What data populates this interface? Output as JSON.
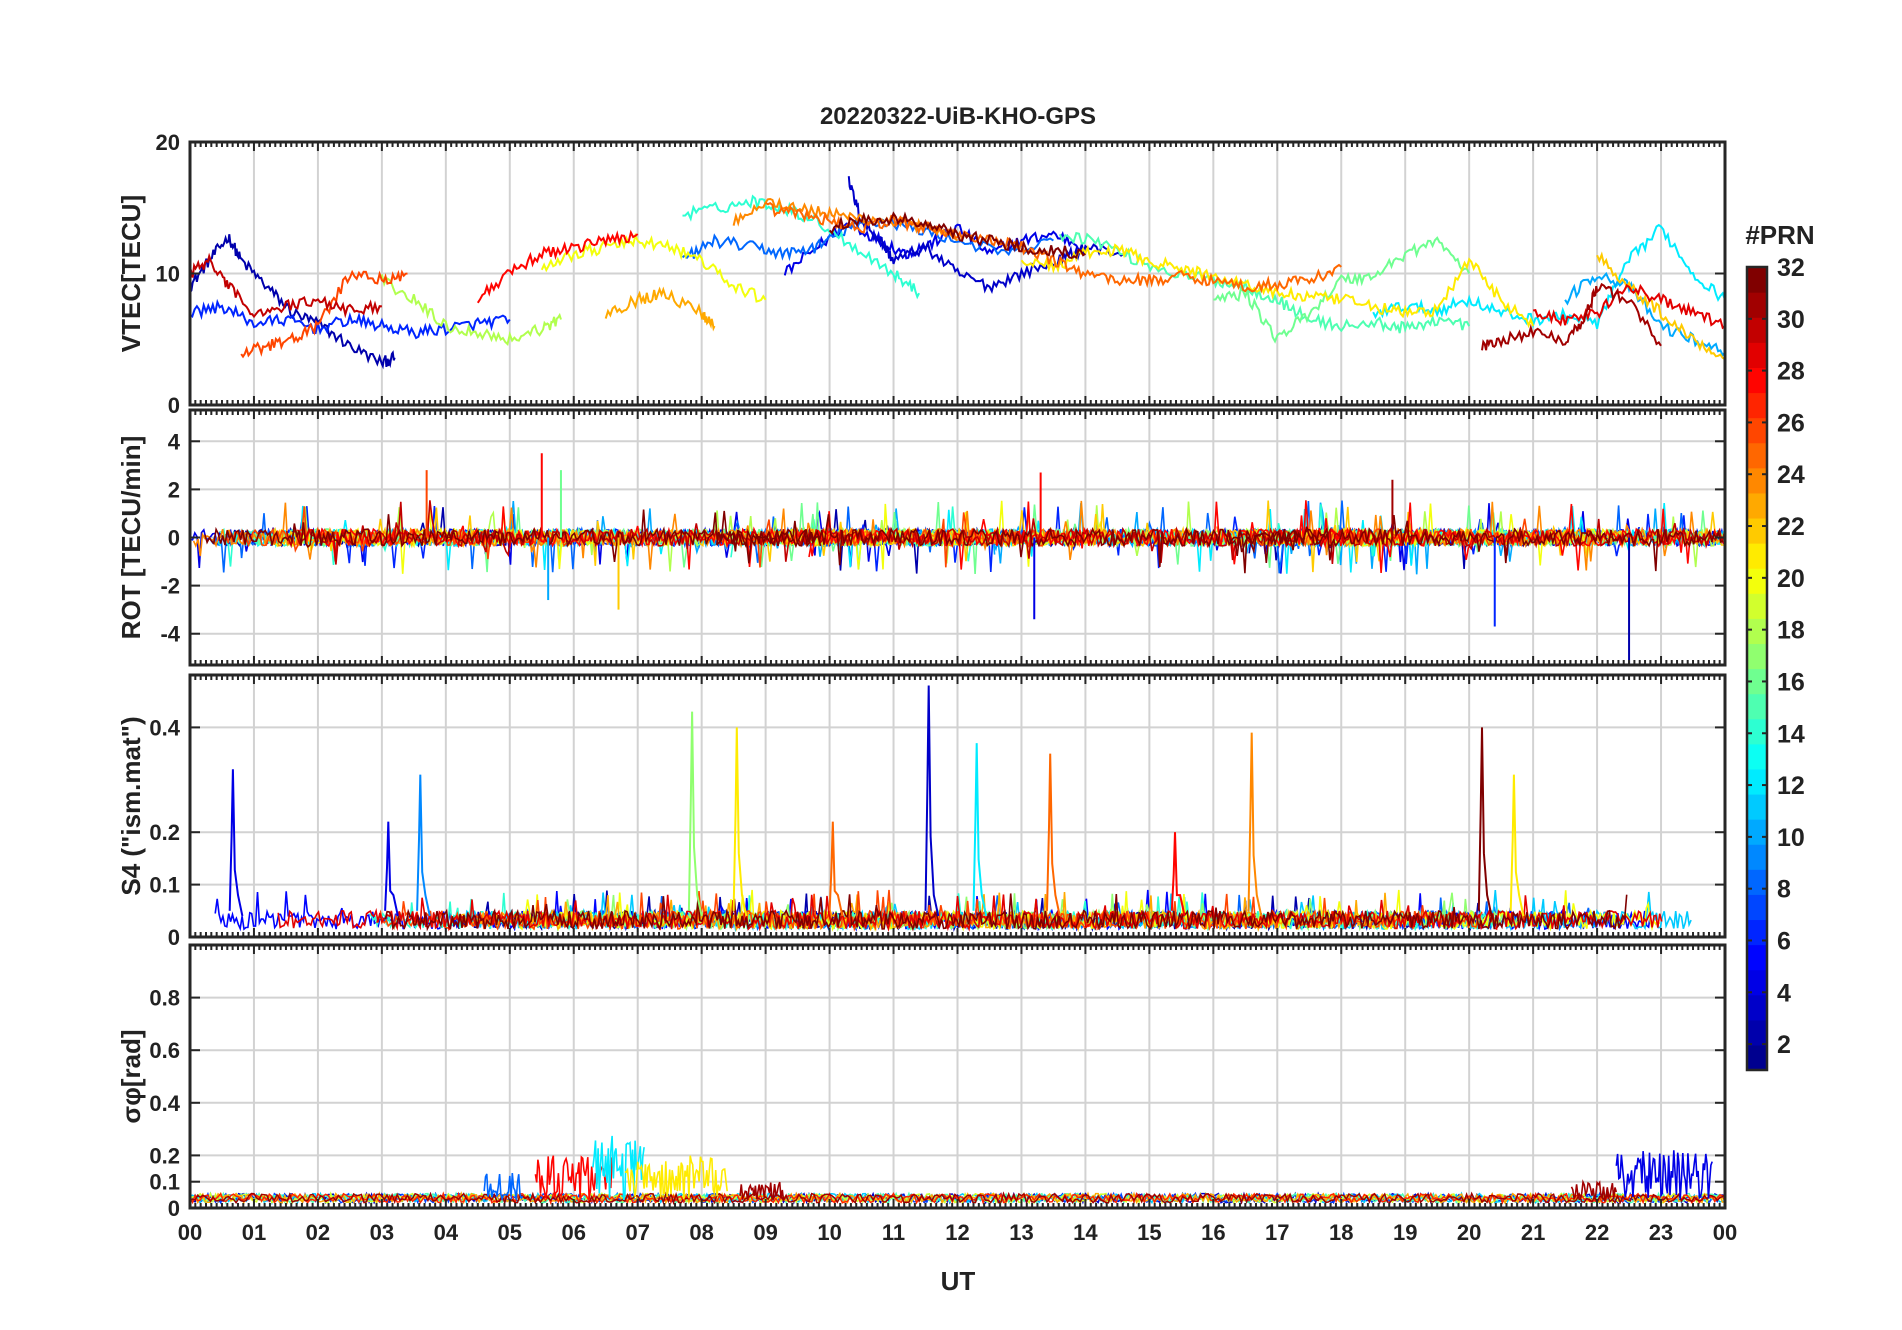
{
  "chart_data": {
    "type": "line",
    "title": "20220322-UiB-KHO-GPS",
    "xlabel": "UT",
    "x_ticks": [
      "00",
      "01",
      "02",
      "03",
      "04",
      "05",
      "06",
      "07",
      "08",
      "09",
      "10",
      "11",
      "12",
      "13",
      "14",
      "15",
      "16",
      "17",
      "18",
      "19",
      "20",
      "21",
      "22",
      "23",
      "00"
    ],
    "xlim_hours": [
      0,
      24
    ],
    "grid": true,
    "colorbar": {
      "label": "#PRN",
      "range": [
        1,
        32
      ],
      "ticks": [
        "32",
        "30",
        "28",
        "26",
        "24",
        "22",
        "20",
        "18",
        "16",
        "14",
        "12",
        "10",
        "8",
        "6",
        "4",
        "2"
      ],
      "colormap": "jet",
      "colors": [
        "#00008f",
        "#0000ff",
        "#0080ff",
        "#00ffff",
        "#80ff80",
        "#ffff00",
        "#ff8000",
        "#ff0000",
        "#800000"
      ]
    },
    "panels": [
      {
        "id": "vtec",
        "ylabel": "VTEC[TECU]",
        "ylim": [
          0,
          20
        ],
        "yticks": [
          "20",
          "10",
          "0"
        ],
        "ytick_values": [
          20,
          10,
          0
        ],
        "series": [
          {
            "prn": 2,
            "x": [
              0.0,
              0.3,
              0.6,
              0.8,
              1.2,
              1.6,
              2.0,
              2.5,
              3.0,
              3.2
            ],
            "y": [
              9,
              11,
              12.8,
              11,
              9,
              7,
              6.2,
              4.5,
              3.2,
              3.6
            ]
          },
          {
            "prn": 4,
            "x": [
              9.3,
              9.8,
              10.3,
              10.8,
              11.2,
              11.6,
              12.0,
              12.5,
              13.0,
              13.5,
              14.0
            ],
            "y": [
              10,
              12,
              13.8,
              12.5,
              11.5,
              12.3,
              13.5,
              11.5,
              12.5,
              13,
              12
            ]
          },
          {
            "prn": 3,
            "x": [
              10.3,
              10.5,
              10.8,
              11.0,
              11.5,
              12.0,
              12.5,
              13.0,
              13.6,
              14.0,
              14.6
            ],
            "y": [
              17,
              14,
              12.5,
              11,
              12,
              10,
              9,
              10,
              11,
              12,
              11.5
            ]
          },
          {
            "prn": 6,
            "x": [
              0.0,
              0.5,
              1.0,
              1.5,
              2.0,
              2.5,
              3.0,
              3.5,
              4.0,
              4.5,
              5.0
            ],
            "y": [
              7,
              7.5,
              6.2,
              6.5,
              5.8,
              6.5,
              6,
              5.5,
              5.8,
              6.2,
              6.5
            ]
          },
          {
            "prn": 8,
            "x": [
              7.7,
              8.2,
              8.8,
              9.3,
              9.8,
              10.3,
              10.8,
              11.3,
              12.0,
              12.8,
              13.5
            ],
            "y": [
              11,
              12.5,
              12,
              11.5,
              12,
              13.5,
              14,
              13.5,
              12.5,
              11.5,
              12.5
            ]
          },
          {
            "prn": 12,
            "x": [
              18.5,
              19.0,
              19.5,
              20.0,
              20.5,
              21.0,
              21.5,
              22.0,
              22.5,
              23.0,
              23.5,
              24.0
            ],
            "y": [
              7,
              7.5,
              7.2,
              8,
              7,
              6.5,
              6.8,
              6.2,
              11,
              13.5,
              10,
              8
            ]
          },
          {
            "prn": 10,
            "x": [
              21.5,
              22.0,
              22.5,
              23.0,
              23.5,
              24.0
            ],
            "y": [
              8,
              10,
              9,
              6,
              5,
              4
            ]
          },
          {
            "prn": 14,
            "x": [
              7.7,
              8.3,
              8.8,
              9.3,
              9.8,
              10.4,
              11.0,
              11.4
            ],
            "y": [
              14.5,
              15,
              15.5,
              15,
              14,
              12,
              10,
              8.5
            ]
          },
          {
            "prn": 15,
            "x": [
              13.6,
              14.2,
              14.8,
              15.4,
              16.0,
              16.5,
              17.0,
              17.5,
              18.0,
              18.6,
              19.0,
              19.5,
              20.0
            ],
            "y": [
              13,
              12.5,
              11,
              10,
              9.5,
              9,
              8,
              6.5,
              6,
              6.2,
              5.8,
              6.5,
              6
            ]
          },
          {
            "prn": 16,
            "x": [
              16.0,
              16.5,
              17.0,
              17.5,
              18.0,
              18.5,
              19.0,
              19.5,
              20.0
            ],
            "y": [
              8,
              8.5,
              5,
              7,
              9.5,
              9.8,
              11.5,
              12.5,
              10
            ]
          },
          {
            "prn": 18,
            "x": [
              3.0,
              3.5,
              4.0,
              4.5,
              5.0,
              5.5,
              5.8
            ],
            "y": [
              9.5,
              8,
              6,
              5.5,
              5,
              5.8,
              6.5
            ]
          },
          {
            "prn": 20,
            "x": [
              5.5,
              6.0,
              6.5,
              7.0,
              7.5,
              8.0,
              8.5,
              9.0
            ],
            "y": [
              10.5,
              11.5,
              12,
              12.5,
              12,
              11,
              9,
              8
            ]
          },
          {
            "prn": 21,
            "x": [
              13.0,
              13.5,
              14.0,
              14.5,
              15.0,
              15.5,
              16.0,
              16.5,
              17.0,
              17.5,
              18.0,
              18.5,
              19.0,
              19.5,
              20.0,
              20.5,
              21.0
            ],
            "y": [
              11,
              10.5,
              11.5,
              11.8,
              11,
              10.3,
              9.8,
              9.2,
              8.5,
              8.2,
              8,
              7.5,
              7,
              7.2,
              11,
              8,
              6
            ]
          },
          {
            "prn": 22,
            "x": [
              22.0,
              22.5,
              23.0,
              23.5,
              24.0
            ],
            "y": [
              11.5,
              9,
              7,
              5,
              3.5
            ]
          },
          {
            "prn": 23,
            "x": [
              6.5,
              7.0,
              7.4,
              8.0,
              8.2
            ],
            "y": [
              7,
              8,
              8.5,
              7,
              6
            ]
          },
          {
            "prn": 24,
            "x": [
              8.5,
              9.0,
              9.5,
              10.0,
              10.5,
              11.0,
              11.5,
              12.0
            ],
            "y": [
              14,
              15.5,
              15,
              14.5,
              14.2,
              14,
              13.5,
              12.5
            ]
          },
          {
            "prn": 25,
            "x": [
              9.0,
              9.5,
              10.0,
              10.5,
              11.0,
              11.5,
              12.0,
              12.5,
              13.0,
              13.5,
              14.0,
              14.5,
              15.0,
              15.5,
              16.0,
              16.5,
              17.0,
              17.5,
              18.0
            ],
            "y": [
              15,
              14.5,
              14,
              13.5,
              14,
              13.5,
              13,
              12.5,
              12,
              11,
              10,
              9.5,
              9.5,
              9.8,
              9.5,
              9,
              9.2,
              9.5,
              10.5
            ]
          },
          {
            "prn": 26,
            "x": [
              0.8,
              1.2,
              1.6,
              2.0,
              2.5,
              3.0,
              3.4
            ],
            "y": [
              3.8,
              4.5,
              5,
              6,
              10,
              9.5,
              10
            ]
          },
          {
            "prn": 28,
            "x": [
              4.5,
              5.0,
              5.5,
              6.0,
              6.5,
              7.0
            ],
            "y": [
              8,
              10,
              11.5,
              12,
              12.5,
              13
            ]
          },
          {
            "prn": 29,
            "x": [
              21.0,
              21.5,
              22.0,
              22.5,
              23.0,
              23.5,
              24.0
            ],
            "y": [
              7,
              6.5,
              7,
              9,
              8,
              7,
              6
            ]
          },
          {
            "prn": 30,
            "x": [
              0.0,
              0.3,
              0.6,
              1.0,
              1.5,
              2.0,
              2.5,
              3.0
            ],
            "y": [
              10,
              11,
              9,
              7,
              7.5,
              8,
              7.2,
              7.5
            ]
          },
          {
            "prn": 31,
            "x": [
              20.2,
              20.5,
              21.0,
              21.5,
              21.8,
              22.0,
              22.5,
              23.0
            ],
            "y": [
              4.5,
              5,
              5.5,
              5,
              6.5,
              9,
              8,
              4.5
            ]
          },
          {
            "prn": 32,
            "x": [
              10.0,
              10.5,
              11.0,
              11.5,
              12.0,
              12.5,
              13.0,
              13.5,
              14.0
            ],
            "y": [
              13.5,
              14,
              14.2,
              13.8,
              13,
              12.5,
              12,
              11.8,
              11.5
            ]
          }
        ]
      },
      {
        "id": "rot",
        "ylabel": "ROT [TECU/min]",
        "ylim": [
          -5.3,
          5.3
        ],
        "yticks": [
          "4",
          "2",
          "0",
          "-2",
          "-4"
        ],
        "ytick_values": [
          4,
          2,
          0,
          -2,
          -4
        ],
        "spikes": [
          {
            "prn": 28,
            "x": 5.5,
            "y": 3.5
          },
          {
            "prn": 16,
            "x": 5.8,
            "y": 2.8
          },
          {
            "prn": 4,
            "x": 13.2,
            "y": -3.4
          },
          {
            "prn": 6,
            "x": 20.4,
            "y": -3.7
          },
          {
            "prn": 2,
            "x": 22.5,
            "y": -5.3
          },
          {
            "prn": 26,
            "x": 3.7,
            "y": 2.8
          },
          {
            "prn": 28,
            "x": 13.3,
            "y": 2.7
          },
          {
            "prn": 31,
            "x": 18.8,
            "y": 2.4
          },
          {
            "prn": 22,
            "x": 6.7,
            "y": -3.0
          },
          {
            "prn": 10,
            "x": 5.6,
            "y": -2.6
          }
        ]
      },
      {
        "id": "s4",
        "ylabel": "S4 (\"ism.mat\")",
        "ylim": [
          0,
          0.5
        ],
        "yticks": [
          "0.4",
          "0.2",
          "0.1",
          "0"
        ],
        "ytick_values": [
          0.4,
          0.2,
          0.1,
          0
        ],
        "spikes": [
          {
            "prn": 4,
            "x": 0.67,
            "y": 0.32
          },
          {
            "prn": 4,
            "x": 3.1,
            "y": 0.22
          },
          {
            "prn": 9,
            "x": 3.6,
            "y": 0.31
          },
          {
            "prn": 17,
            "x": 7.85,
            "y": 0.43
          },
          {
            "prn": 21,
            "x": 8.55,
            "y": 0.4
          },
          {
            "prn": 25,
            "x": 10.05,
            "y": 0.22
          },
          {
            "prn": 3,
            "x": 11.55,
            "y": 0.48
          },
          {
            "prn": 12,
            "x": 12.3,
            "y": 0.37
          },
          {
            "prn": 25,
            "x": 13.45,
            "y": 0.35
          },
          {
            "prn": 28,
            "x": 15.4,
            "y": 0.2
          },
          {
            "prn": 24,
            "x": 16.6,
            "y": 0.39
          },
          {
            "prn": 32,
            "x": 20.2,
            "y": 0.4
          },
          {
            "prn": 21,
            "x": 20.7,
            "y": 0.31
          }
        ]
      },
      {
        "id": "sigma_phi",
        "ylabel": "σφ[rad]",
        "ylim": [
          0,
          1.0
        ],
        "yticks": [
          "0.8",
          "0.6",
          "0.4",
          "0.2",
          "0.1",
          "0"
        ],
        "ytick_values": [
          0.8,
          0.6,
          0.4,
          0.2,
          0.1,
          0
        ],
        "bumps": [
          {
            "prn": 28,
            "x0": 5.4,
            "x1": 6.6,
            "peak": 0.2
          },
          {
            "prn": 12,
            "x0": 6.3,
            "x1": 7.1,
            "peak": 0.28
          },
          {
            "prn": 21,
            "x0": 6.8,
            "x1": 8.4,
            "peak": 0.2
          },
          {
            "prn": 31,
            "x0": 8.6,
            "x1": 9.3,
            "peak": 0.1
          },
          {
            "prn": 4,
            "x0": 22.3,
            "x1": 23.8,
            "peak": 0.22
          },
          {
            "prn": 31,
            "x0": 21.6,
            "x1": 22.3,
            "peak": 0.1
          },
          {
            "prn": 8,
            "x0": 4.6,
            "x1": 5.2,
            "peak": 0.14
          }
        ]
      }
    ]
  }
}
